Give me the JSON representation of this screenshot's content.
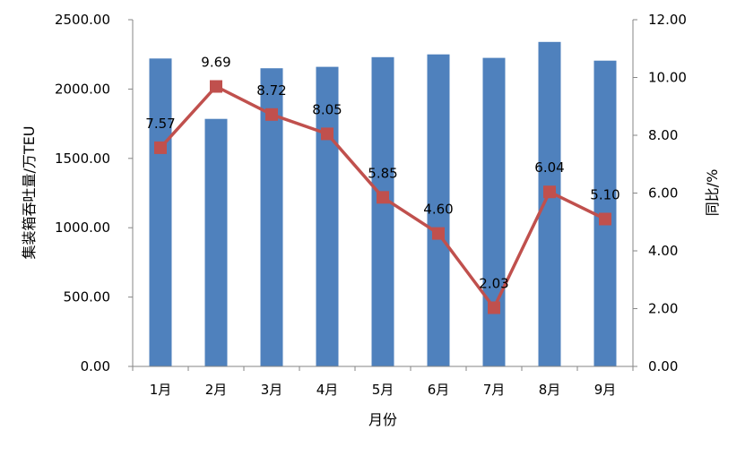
{
  "chart_data": {
    "type": "bar+line",
    "categories": [
      "1月",
      "2月",
      "3月",
      "4月",
      "5月",
      "6月",
      "7月",
      "8月",
      "9月"
    ],
    "series": [
      {
        "type": "bar",
        "axis": "left",
        "values": [
          2220,
          1785,
          2150,
          2160,
          2230,
          2250,
          2225,
          2340,
          2205
        ],
        "color": "#4F81BD"
      },
      {
        "type": "line",
        "axis": "right",
        "values": [
          7.57,
          9.69,
          8.72,
          8.05,
          5.85,
          4.6,
          2.03,
          6.04,
          5.1
        ],
        "labels": [
          "7.57",
          "9.69",
          "8.72",
          "8.05",
          "5.85",
          "4.60",
          "2.03",
          "6.04",
          "5.10"
        ],
        "color": "#C0504D"
      }
    ],
    "xlabel": "月份",
    "ylabel_left": "集装箱吞吐量/万TEU",
    "ylabel_right": "同比/%",
    "ylim_left": [
      0,
      2500
    ],
    "ylim_right": [
      0,
      12
    ],
    "yticks_left": [
      "0.00",
      "500.00",
      "1000.00",
      "1500.00",
      "2000.00",
      "2500.00"
    ],
    "yticks_right": [
      "0.00",
      "2.00",
      "4.00",
      "6.00",
      "8.00",
      "10.00",
      "12.00"
    ],
    "grid": false,
    "legend": "none"
  }
}
